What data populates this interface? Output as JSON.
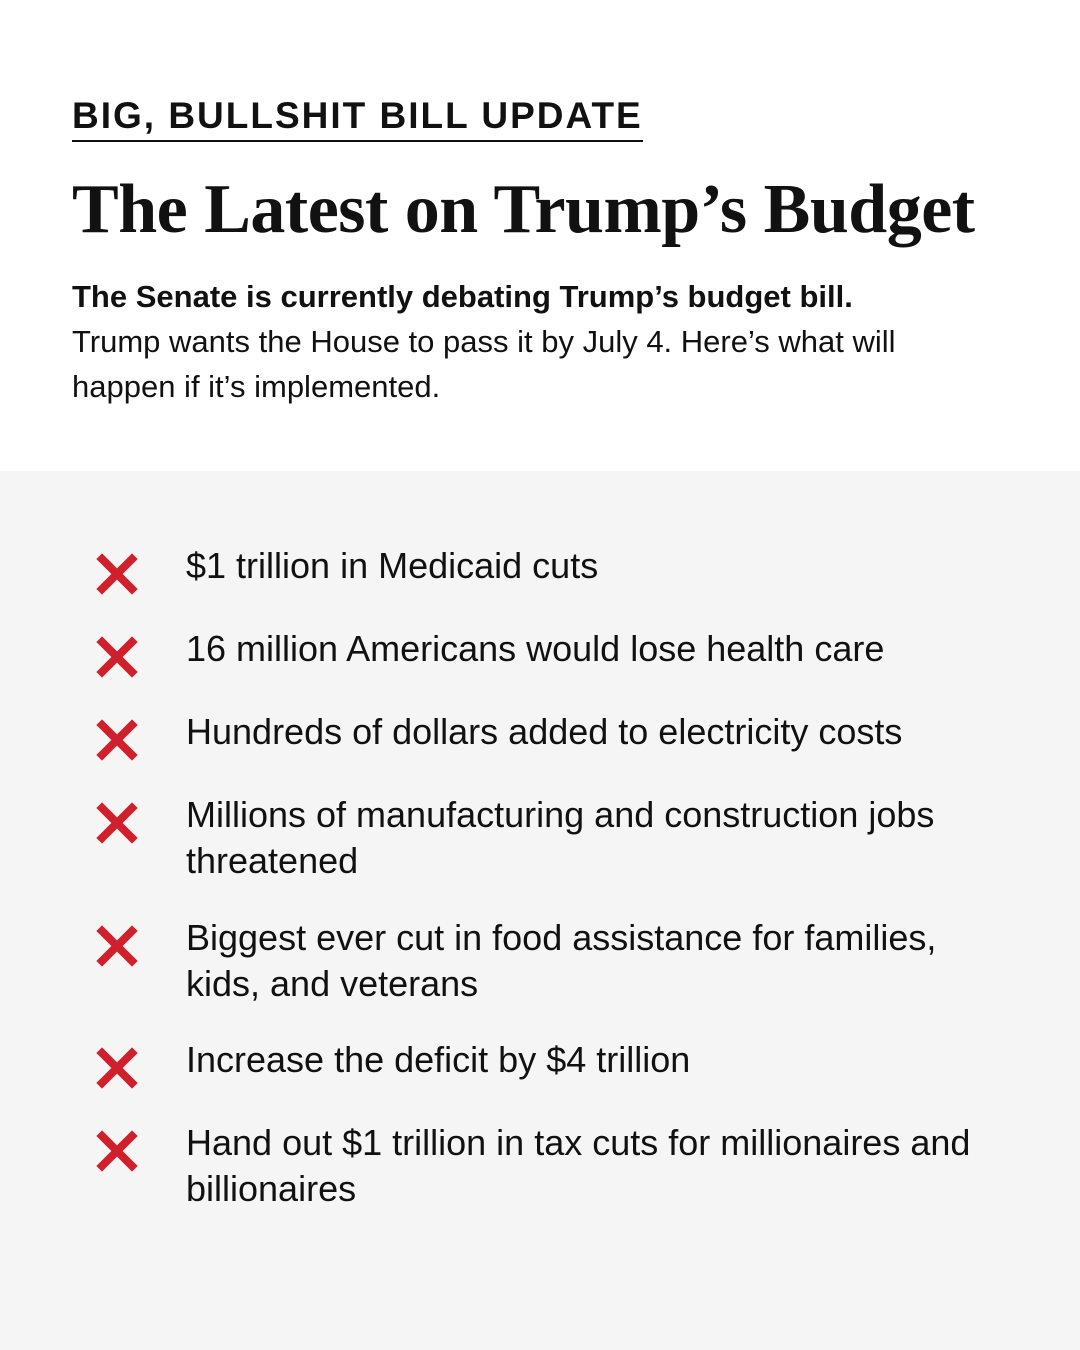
{
  "header": {
    "kicker": "BIG, BULLSHIT BILL UPDATE",
    "headline": "The Latest on Trump’s Budget",
    "intro_lead": "The Senate is currently debating Trump’s budget bill.",
    "intro_body": "Trump wants the House to pass it by July 4. Here’s what will happen if it’s implemented."
  },
  "list": {
    "icon": "x-mark-icon",
    "icon_color": "#d0202b",
    "panel_color": "#f5f5f5",
    "items": [
      "$1 trillion in Medicaid cuts",
      "16 million Americans would lose health care",
      "Hundreds of dollars added to electricity costs",
      "Millions of manufacturing and construction jobs threatened",
      "Biggest ever cut in food assistance for families, kids, and veterans",
      "Increase the deficit by $4 trillion",
      "Hand out $1 trillion in tax cuts for millionaires and billionaires"
    ]
  }
}
